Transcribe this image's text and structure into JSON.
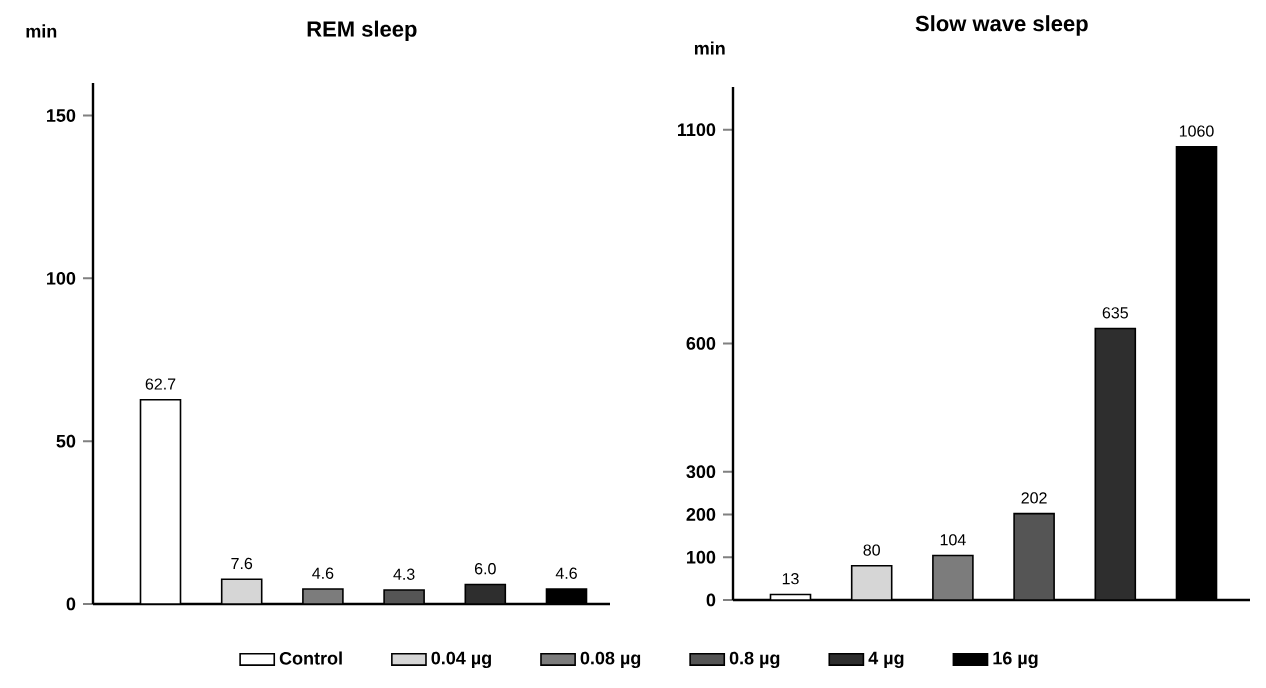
{
  "chart_data": [
    {
      "type": "bar",
      "title": "REM sleep",
      "ylabel": "min",
      "categories": [
        null
      ],
      "series": [
        {
          "name": "Control",
          "color": "#ffffff",
          "values": [
            62.7
          ],
          "value_labels": [
            "62.7"
          ]
        },
        {
          "name": "0.04 µg",
          "color": "#d6d6d6",
          "values": [
            7.6
          ],
          "value_labels": [
            "7.6"
          ]
        },
        {
          "name": "0.08 µg",
          "color": "#7c7c7c",
          "values": [
            4.6
          ],
          "value_labels": [
            "4.6"
          ]
        },
        {
          "name": "0.8 µg",
          "color": "#555555",
          "values": [
            4.3
          ],
          "value_labels": [
            "4.3"
          ]
        },
        {
          "name": "4 µg",
          "color": "#2e2e2e",
          "values": [
            6.0
          ],
          "value_labels": [
            "6.0"
          ]
        },
        {
          "name": "16 µg",
          "color": "#000000",
          "values": [
            4.6
          ],
          "value_labels": [
            "4.6"
          ]
        }
      ],
      "ylim": [
        0,
        160
      ],
      "yticks": [
        0,
        50,
        100,
        150
      ],
      "tick_labels": "y",
      "legend": "bottom"
    },
    {
      "type": "bar",
      "title": "Slow wave sleep",
      "ylabel": "min",
      "categories": [
        null
      ],
      "series": [
        {
          "color": "#ffffff",
          "values": [
            13
          ],
          "value_labels": [
            "13"
          ]
        },
        {
          "color": "#d6d6d6",
          "values": [
            80
          ],
          "value_labels": [
            "80"
          ]
        },
        {
          "color": "#7c7c7c",
          "values": [
            104
          ],
          "value_labels": [
            "104"
          ]
        },
        {
          "color": "#555555",
          "values": [
            202
          ],
          "value_labels": [
            "202"
          ]
        },
        {
          "color": "#2e2e2e",
          "values": [
            635
          ],
          "value_labels": [
            "635"
          ]
        },
        {
          "color": "#000000",
          "values": [
            1060
          ],
          "value_labels": [
            "1060"
          ]
        }
      ],
      "ylim": [
        0,
        1200
      ],
      "yticks": [
        0,
        100,
        200,
        300,
        600,
        1100
      ],
      "tick_labels": "y"
    }
  ]
}
